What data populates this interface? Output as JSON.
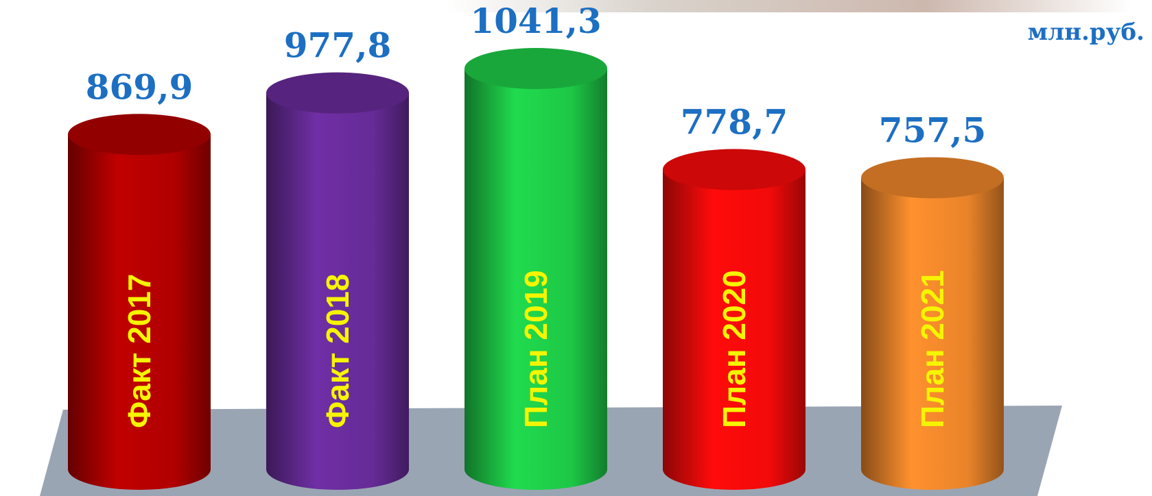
{
  "chart_data": {
    "type": "cylinder",
    "unit_label": "млн.руб.",
    "categories": [
      "Факт 2017",
      "Факт 2018",
      "План 2019",
      "План 2020",
      "План 2021"
    ],
    "values": [
      869.9,
      977.8,
      1041.3,
      778.7,
      757.5
    ],
    "value_labels": [
      "869,9",
      "977,8",
      "1041,3",
      "778,7",
      "757,5"
    ],
    "colors": [
      "#b80000",
      "#6b2d9e",
      "#1fd14a",
      "#ff0a0a",
      "#f58a2c"
    ]
  }
}
